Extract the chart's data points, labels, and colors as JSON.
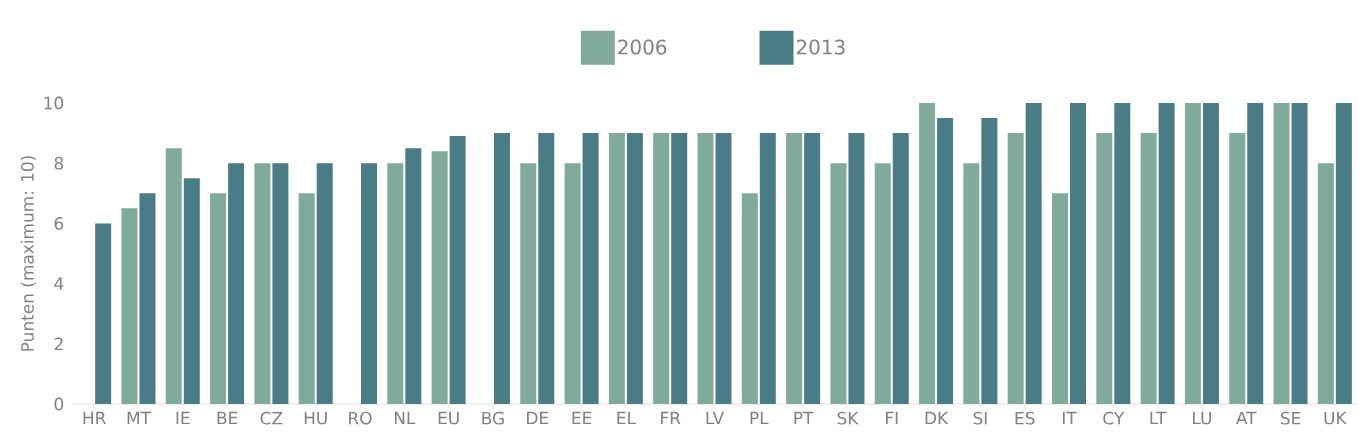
{
  "chart_data": {
    "type": "bar",
    "ylabel": "Punten (maximum: 10)",
    "categories": [
      "HR",
      "MT",
      "IE",
      "BE",
      "CZ",
      "HU",
      "RO",
      "NL",
      "EU",
      "BG",
      "DE",
      "EE",
      "EL",
      "FR",
      "LV",
      "PL",
      "PT",
      "SK",
      "FI",
      "DK",
      "SI",
      "ES",
      "IT",
      "CY",
      "LT",
      "LU",
      "AT",
      "SE",
      "UK"
    ],
    "series": [
      {
        "name": "2006",
        "color": "#80aa9a",
        "values": [
          null,
          6.5,
          8.5,
          7,
          8,
          7,
          null,
          8,
          8.4,
          null,
          8,
          8,
          9,
          9,
          9,
          7,
          9,
          8,
          8,
          10,
          8,
          9,
          7,
          9,
          9,
          10,
          9,
          10,
          8
        ]
      },
      {
        "name": "2013",
        "color": "#4a7c85",
        "values": [
          6,
          7,
          7.5,
          8,
          8,
          8,
          8,
          8.5,
          8.9,
          9,
          9,
          9,
          9,
          9,
          9,
          9,
          9,
          9,
          9,
          9.5,
          9.5,
          10,
          10,
          10,
          10,
          10,
          10,
          10,
          10
        ]
      }
    ],
    "ylim": [
      0,
      10
    ],
    "yticks": [
      0,
      2,
      4,
      6,
      8,
      10
    ],
    "grid": false,
    "legend": "top"
  }
}
